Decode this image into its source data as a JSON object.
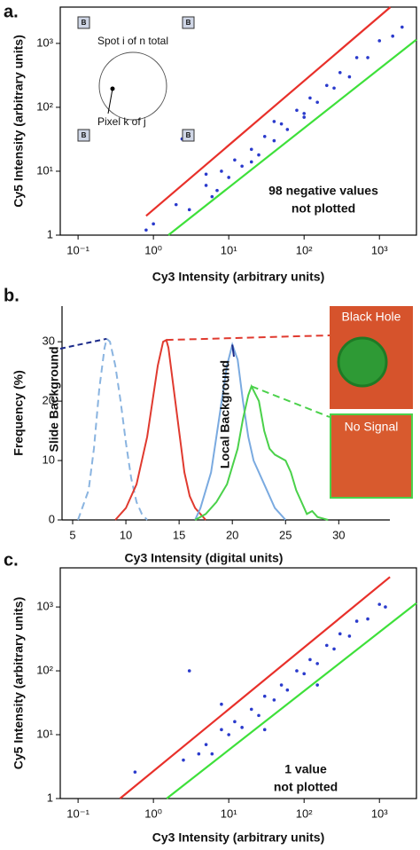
{
  "chart_data": [
    {
      "type": "scatter",
      "panel_label": "a.",
      "xlabel": "Cy3 Intensity (arbitrary units)",
      "ylabel": "Cy5 Intensity (arbitrary units)",
      "log_x": true,
      "log_y": true,
      "xlim": [
        0.058,
        3100
      ],
      "ylim": [
        1,
        3700
      ],
      "xticks": [
        {
          "value": 0.1,
          "label": "10⁻¹"
        },
        {
          "value": 1,
          "label": "10⁰"
        },
        {
          "value": 10,
          "label": "10¹"
        },
        {
          "value": 100,
          "label": "10²"
        },
        {
          "value": 1000,
          "label": "10³"
        }
      ],
      "yticks": [
        1,
        {
          "value": 10,
          "label": "10¹"
        },
        {
          "value": 100,
          "label": "10²"
        },
        {
          "value": 1000,
          "label": "10³"
        }
      ],
      "series": [
        {
          "color": "#2a3acc",
          "x": [
            2,
            3,
            5,
            6,
            8,
            10,
            12,
            15,
            20,
            25,
            30,
            40,
            50,
            60,
            80,
            100,
            120,
            150,
            200,
            250,
            300,
            400,
            500,
            700,
            1000,
            1500,
            1,
            0.8,
            2.4,
            5,
            20,
            100,
            2000,
            40,
            7
          ],
          "values": [
            3,
            2.5,
            6,
            4,
            10,
            8,
            15,
            12,
            22,
            18,
            35,
            30,
            55,
            45,
            90,
            80,
            140,
            120,
            220,
            200,
            350,
            300,
            600,
            600,
            1100,
            1300,
            1.5,
            1.2,
            32,
            9,
            14,
            70,
            1800,
            60,
            5
          ]
        }
      ],
      "lines": [
        {
          "color": "#e8302a",
          "x": [
            0.8,
            1400
          ],
          "values": [
            2,
            3700
          ]
        },
        {
          "color": "#3ee03a",
          "x": [
            1.58,
            3100
          ],
          "values": [
            1,
            1150
          ]
        }
      ],
      "annotations": [
        "98 negative values",
        "not plotted"
      ],
      "inset": {
        "spot_label": "Spot i of n total",
        "pixel_label": "Pixel k  of j",
        "corner_labels": [
          "B",
          "B",
          "B",
          "B"
        ]
      }
    },
    {
      "type": "line",
      "panel_label": "b.",
      "xlabel": "Cy3 Intensity (digital units)",
      "ylabel": "Frequency (%)",
      "xlim": [
        4,
        37.3
      ],
      "ylim": [
        0,
        36
      ],
      "xticks": [
        5,
        10,
        15,
        20,
        25,
        30
      ],
      "yticks": [
        0,
        10,
        20,
        30
      ],
      "series": [
        {
          "name": "Slide Background",
          "color": "#8ab4e0",
          "dashed": true,
          "x": [
            5.5,
            6.5,
            7,
            7.5,
            8,
            8.2,
            8.5,
            9,
            9.5,
            10,
            10.5,
            11,
            11.5,
            12
          ],
          "values": [
            0,
            5,
            12,
            22,
            29,
            30.5,
            30,
            26,
            20,
            13,
            7,
            3,
            1,
            0
          ]
        },
        {
          "color": "#e03a2f",
          "dashed": false,
          "x": [
            9,
            10,
            11,
            12,
            12.5,
            13,
            13.5,
            13.8,
            14,
            14.5,
            15,
            15.5,
            16,
            16.5,
            17,
            17.5
          ],
          "values": [
            0,
            2,
            6,
            14,
            20,
            26,
            30,
            30.3,
            29,
            22,
            15,
            8,
            4,
            2,
            1,
            0
          ]
        },
        {
          "name": "Local Background",
          "color": "#7aaae0",
          "dashed": false,
          "x": [
            16.5,
            17,
            18,
            18.5,
            19,
            19.5,
            20,
            20.5,
            21,
            21.5,
            22,
            23,
            24,
            25
          ],
          "values": [
            0,
            2,
            8,
            14,
            20,
            26,
            29.5,
            27,
            20,
            14,
            10,
            6,
            2,
            0
          ]
        },
        {
          "color": "#4ad14a",
          "dashed": false,
          "x": [
            16.5,
            17.5,
            18.5,
            19.5,
            20.5,
            21,
            21.5,
            21.8,
            22.5,
            23,
            23.5,
            24,
            25,
            25.5,
            26,
            26.5,
            27,
            27.5,
            28,
            29
          ],
          "values": [
            0,
            1,
            3,
            6,
            12,
            17,
            21,
            22.5,
            20,
            15,
            12,
            11,
            10,
            8,
            5,
            3,
            1,
            1.5,
            0.5,
            0
          ]
        }
      ],
      "insets": [
        {
          "label": "Black Hole"
        },
        {
          "label": "No Signal"
        }
      ]
    },
    {
      "type": "scatter",
      "panel_label": "c.",
      "xlabel": "Cy3 Intensity (arbitrary units)",
      "ylabel": "Cy5 Intensity (arbitrary units)",
      "log_x": true,
      "log_y": true,
      "xlim": [
        0.058,
        3100
      ],
      "ylim": [
        1,
        4100
      ],
      "xticks": [
        {
          "value": 0.1,
          "label": "10⁻¹"
        },
        {
          "value": 1,
          "label": "10⁰"
        },
        {
          "value": 10,
          "label": "10¹"
        },
        {
          "value": 100,
          "label": "10²"
        },
        {
          "value": 1000,
          "label": "10³"
        }
      ],
      "yticks": [
        1,
        {
          "value": 10,
          "label": "10¹"
        },
        {
          "value": 100,
          "label": "10²"
        },
        {
          "value": 1000,
          "label": "10³"
        }
      ],
      "series": [
        {
          "color": "#2a3acc",
          "x": [
            0.57,
            3,
            4,
            5,
            6,
            8,
            10,
            12,
            15,
            20,
            25,
            30,
            40,
            50,
            60,
            80,
            100,
            120,
            150,
            200,
            250,
            300,
            400,
            500,
            700,
            1000,
            1200,
            8,
            30,
            150,
            2.5
          ],
          "values": [
            2.6,
            100,
            5,
            7,
            5,
            12,
            10,
            16,
            13,
            25,
            20,
            40,
            35,
            60,
            50,
            100,
            90,
            150,
            130,
            250,
            220,
            380,
            350,
            600,
            650,
            1100,
            1000,
            30,
            12,
            60,
            4
          ]
        }
      ],
      "lines": [
        {
          "color": "#e8302a",
          "x": [
            0.36,
            1380
          ],
          "values": [
            1,
            2950
          ]
        },
        {
          "color": "#3ee03a",
          "x": [
            1.5,
            3100
          ],
          "values": [
            1,
            1150
          ]
        }
      ],
      "annotations": [
        "1 value",
        "not plotted"
      ]
    }
  ]
}
